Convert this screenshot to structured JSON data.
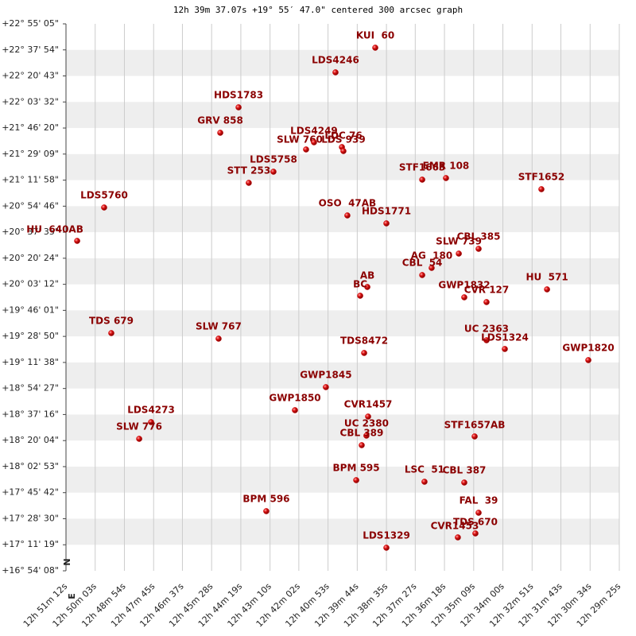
{
  "chart_data": {
    "type": "scatter",
    "title": "12h 39m 37.07s +19° 55′ 47.0\" centered 300 arcsec graph",
    "compass": [
      "N",
      "E"
    ],
    "color": "#cc0000",
    "xlim": [
      12.85333,
      12.49028
    ],
    "ylim": [
      16.90222,
      22.91806
    ],
    "xticks": [
      {
        "value": 12.85333,
        "label": "12h 51m 12s"
      },
      {
        "value": 12.83417,
        "label": "12h 50m 03s"
      },
      {
        "value": 12.815,
        "label": "12h 48m 54s"
      },
      {
        "value": 12.79583,
        "label": "12h 47m 45s"
      },
      {
        "value": 12.77694,
        "label": "12h 46m 37s"
      },
      {
        "value": 12.75778,
        "label": "12h 45m 28s"
      },
      {
        "value": 12.73861,
        "label": "12h 44m 19s"
      },
      {
        "value": 12.71944,
        "label": "12h 43m 10s"
      },
      {
        "value": 12.70056,
        "label": "12h 42m 02s"
      },
      {
        "value": 12.68139,
        "label": "12h 40m 53s"
      },
      {
        "value": 12.66222,
        "label": "12h 39m 44s"
      },
      {
        "value": 12.64306,
        "label": "12h 38m 35s"
      },
      {
        "value": 12.62417,
        "label": "12h 37m 27s"
      },
      {
        "value": 12.605,
        "label": "12h 36m 18s"
      },
      {
        "value": 12.58583,
        "label": "12h 35m 09s"
      },
      {
        "value": 12.56667,
        "label": "12h 34m 00s"
      },
      {
        "value": 12.5475,
        "label": "12h 32m 51s"
      },
      {
        "value": 12.52861,
        "label": "12h 31m 43s"
      },
      {
        "value": 12.50944,
        "label": "12h 30m 34s"
      },
      {
        "value": 12.49028,
        "label": "12h 29m 25s"
      }
    ],
    "yticks": [
      {
        "value": 22.91806,
        "label": "+22° 55' 05\""
      },
      {
        "value": 22.63167,
        "label": "+22° 37' 54\""
      },
      {
        "value": 22.34528,
        "label": "+22° 20' 43\""
      },
      {
        "value": 22.05889,
        "label": "+22° 03' 32\""
      },
      {
        "value": 21.77222,
        "label": "+21° 46' 20\""
      },
      {
        "value": 21.48583,
        "label": "+21° 29' 09\""
      },
      {
        "value": 21.19944,
        "label": "+21° 11' 58\""
      },
      {
        "value": 20.91278,
        "label": "+20° 54' 46\""
      },
      {
        "value": 20.62639,
        "label": "+20° 37' 35\""
      },
      {
        "value": 20.34,
        "label": "+20° 20' 24\""
      },
      {
        "value": 20.05333,
        "label": "+20° 03' 12\""
      },
      {
        "value": 19.76694,
        "label": "+19° 46' 01\""
      },
      {
        "value": 19.48056,
        "label": "+19° 28' 50\""
      },
      {
        "value": 19.19389,
        "label": "+19° 11' 38\""
      },
      {
        "value": 18.9075,
        "label": "+18° 54' 27\""
      },
      {
        "value": 18.62111,
        "label": "+18° 37' 16\""
      },
      {
        "value": 18.33444,
        "label": "+18° 20' 04\""
      },
      {
        "value": 18.04806,
        "label": "+18° 02' 53\""
      },
      {
        "value": 17.76167,
        "label": "+17° 45' 42\""
      },
      {
        "value": 17.475,
        "label": "+17° 28' 30\""
      },
      {
        "value": 17.18861,
        "label": "+17° 11' 19\""
      },
      {
        "value": 16.90222,
        "label": "+16° 54' 08\""
      }
    ],
    "labels": [
      "KUI  60",
      "LDS4246",
      "HDS1783",
      "GRV 858",
      "SLW 760",
      "LDS4249",
      "LDC 76",
      "LDS 939",
      "LDS5758",
      "STT 253",
      "STF1663",
      "EMR 108",
      "STF1652",
      "LDS5760",
      "OSO  47AB",
      "HDS1771",
      "HU  640AB",
      "CBL 385",
      "SLW 739",
      "AG  180",
      "CBL  54",
      "AB",
      "BC",
      "GWP1832",
      "CVR 127",
      "HU  571",
      "TDS 679",
      "SLW 767",
      "UC 2363",
      "LDS1324",
      "GWP1820",
      "TDS8472",
      "GWP1845",
      "GWP1850",
      "CVR1457",
      "LDS4273",
      "SLW 776",
      "UC 2380",
      "CBL 389",
      "STF1657AB",
      "BPM 595",
      "LSC  51",
      "CBL 387",
      "FAL  39",
      "BPM 596",
      "TDS 670",
      "CVR1453",
      "LDS1329"
    ],
    "x": [
      12.6504,
      12.6765,
      12.7401,
      12.7521,
      12.6958,
      12.6906,
      12.6723,
      12.6713,
      12.7172,
      12.7334,
      12.6196,
      12.604,
      12.5414,
      12.8283,
      12.6687,
      12.6431,
      12.846,
      12.5826,
      12.5956,
      12.6134,
      12.6196,
      12.6556,
      12.6603,
      12.592,
      12.5774,
      12.5377,
      12.8236,
      12.7532,
      12.5774,
      12.5654,
      12.5106,
      12.6577,
      12.6828,
      12.7031,
      12.6551,
      12.7975,
      12.8053,
      12.6562,
      12.6593,
      12.5852,
      12.6629,
      12.6181,
      12.592,
      12.5826,
      12.7219,
      12.5847,
      12.5962,
      12.6431
    ],
    "values": [
      22.6558,
      22.3847,
      21.9999,
      21.7202,
      21.5366,
      21.6153,
      21.5628,
      21.5191,
      21.2918,
      21.1694,
      21.2044,
      21.2218,
      21.0994,
      20.8983,
      20.8109,
      20.7235,
      20.5311,
      20.4437,
      20.3912,
      20.2338,
      20.1551,
      20.024,
      19.9278,
      19.9103,
      19.8578,
      19.9977,
      19.5168,
      19.4556,
      19.4382,
      19.342,
      19.2196,
      19.2983,
      18.9223,
      18.6688,
      18.5988,
      18.5376,
      18.354,
      18.3889,
      18.284,
      18.3802,
      17.8993,
      17.8818,
      17.8731,
      17.5408,
      17.5583,
      17.3135,
      17.2698,
      17.1561
    ]
  }
}
